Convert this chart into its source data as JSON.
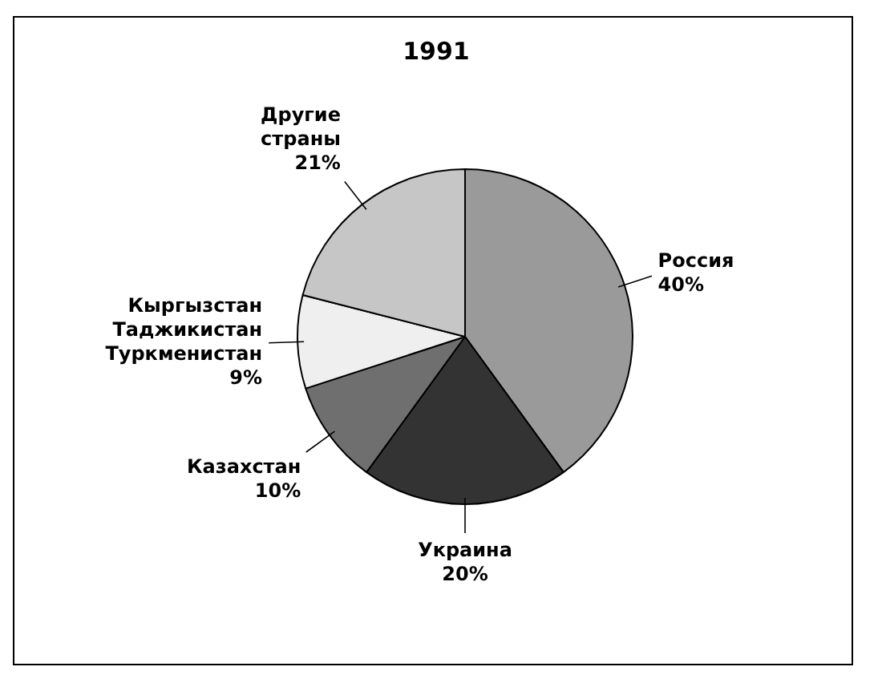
{
  "chart_data": {
    "type": "pie",
    "title": "1991",
    "categories": [
      "Россия",
      "Украина",
      "Казахстан",
      "Кыргызстан Таджикистан Туркменистан",
      "Другие страны"
    ],
    "values": [
      40,
      20,
      10,
      9,
      21
    ],
    "value_labels": [
      "40%",
      "20%",
      "10%",
      "9%",
      "21%"
    ],
    "colors": [
      "#9a9a9a",
      "#333333",
      "#6f6f6f",
      "#efefef",
      "#c6c6c6"
    ],
    "legend": false
  }
}
